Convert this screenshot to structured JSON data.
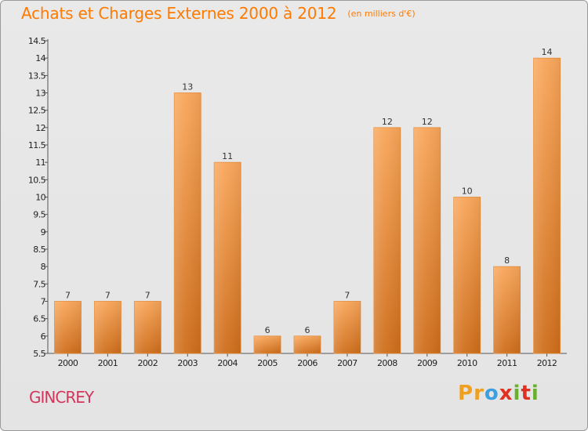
{
  "header": {
    "title": "Achats et Charges Externes 2000 à 2012",
    "unit": "(en milliers d'€)"
  },
  "footer": {
    "place": "GINCREY",
    "logo": [
      "P",
      "r",
      "o",
      "x",
      "i",
      "t",
      "i"
    ]
  },
  "colors": {
    "title": "#ff7a00",
    "place": "#d2365d",
    "bar_top": "#f9a65a",
    "bar_bottom": "#cf6e1b",
    "logo": [
      "#f0a020",
      "#f0a020",
      "#3aa0e0",
      "#e03020",
      "#6ab02e",
      "#e03020",
      "#6ab02e"
    ]
  },
  "chart_data": {
    "type": "bar",
    "title": "Achats et Charges Externes 2000 à 2012",
    "subtitle": "(en milliers d'€)",
    "categories": [
      "2000",
      "2001",
      "2002",
      "2003",
      "2004",
      "2005",
      "2006",
      "2007",
      "2008",
      "2009",
      "2010",
      "2011",
      "2012"
    ],
    "values": [
      7,
      7,
      7,
      13,
      11,
      6,
      6,
      7,
      12,
      12,
      10,
      8,
      14
    ],
    "ylim": [
      5.5,
      14.5
    ],
    "yticks": [
      "5.5",
      "6",
      "6.5",
      "7",
      "7.5",
      "8",
      "8.5",
      "9",
      "9.5",
      "10",
      "10.5",
      "11",
      "11.5",
      "12",
      "12.5",
      "13",
      "13.5",
      "14",
      "14.5"
    ],
    "grid": false,
    "legend": "none"
  }
}
